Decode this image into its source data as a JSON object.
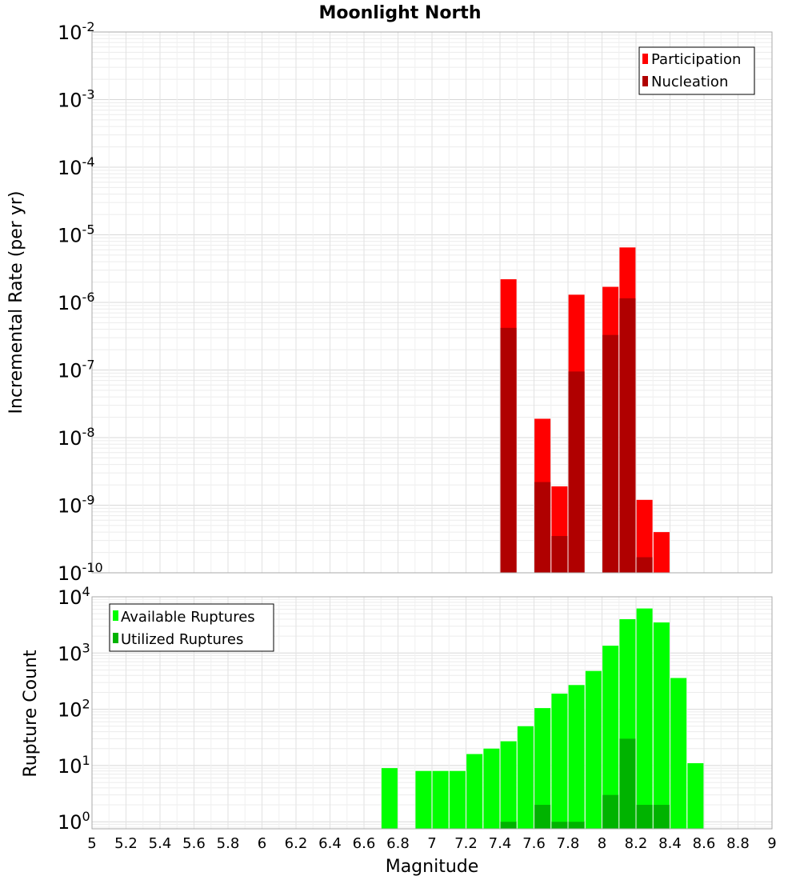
{
  "chart_data": [
    {
      "type": "bar",
      "title": "Moonlight North",
      "ylabel": "Incremental Rate (per yr)",
      "xlabel": "",
      "xlim": [
        5,
        9
      ],
      "ylim": [
        1e-10,
        0.01
      ],
      "y_scale": "log",
      "grid": true,
      "legend_position": "top-right",
      "y_ticks": [
        {
          "base": "10",
          "exp": "-2"
        },
        {
          "base": "10",
          "exp": "-3"
        },
        {
          "base": "10",
          "exp": "-4"
        },
        {
          "base": "10",
          "exp": "-5"
        },
        {
          "base": "10",
          "exp": "-6"
        },
        {
          "base": "10",
          "exp": "-7"
        },
        {
          "base": "10",
          "exp": "-8"
        },
        {
          "base": "10",
          "exp": "-9"
        },
        {
          "base": "10",
          "exp": "-10"
        }
      ],
      "series": [
        {
          "name": "Participation",
          "color": "#ff0000",
          "x": [
            7.45,
            7.65,
            7.75,
            7.85,
            8.05,
            8.15,
            8.25,
            8.35
          ],
          "values": [
            2.2e-06,
            1.9e-08,
            1.9e-09,
            1.3e-06,
            1.7e-06,
            6.5e-06,
            1.2e-09,
            4e-10
          ]
        },
        {
          "name": "Nucleation",
          "color": "#b00000",
          "x": [
            7.45,
            7.65,
            7.75,
            7.85,
            8.05,
            8.15,
            8.25
          ],
          "values": [
            4.2e-07,
            2.2e-09,
            3.5e-10,
            9.5e-08,
            3.3e-07,
            1.15e-06,
            1.7e-10
          ]
        }
      ]
    },
    {
      "type": "bar",
      "title": "",
      "ylabel": "Rupture Count",
      "xlabel": "Magnitude",
      "xlim": [
        5,
        9
      ],
      "ylim": [
        0.75,
        10000
      ],
      "y_scale": "log",
      "grid": true,
      "legend_position": "top-left",
      "x_ticks": [
        "5",
        "5.2",
        "5.4",
        "5.6",
        "5.8",
        "6",
        "6.2",
        "6.4",
        "6.6",
        "6.8",
        "7",
        "7.2",
        "7.4",
        "7.6",
        "7.8",
        "8",
        "8.2",
        "8.4",
        "8.6",
        "8.8",
        "9"
      ],
      "y_ticks": [
        {
          "base": "10",
          "exp": "4"
        },
        {
          "base": "10",
          "exp": "3"
        },
        {
          "base": "10",
          "exp": "2"
        },
        {
          "base": "10",
          "exp": "1"
        },
        {
          "base": "10",
          "exp": "0"
        }
      ],
      "series": [
        {
          "name": "Available Ruptures",
          "color": "#00ff00",
          "x": [
            6.75,
            6.95,
            7.05,
            7.15,
            7.25,
            7.35,
            7.45,
            7.55,
            7.65,
            7.75,
            7.85,
            7.95,
            8.05,
            8.15,
            8.25,
            8.35,
            8.45,
            8.55
          ],
          "values": [
            9,
            8,
            8,
            8,
            16,
            20,
            27,
            50,
            105,
            190,
            270,
            480,
            1350,
            4000,
            6200,
            3500,
            360,
            11
          ]
        },
        {
          "name": "Utilized Ruptures",
          "color": "#00b300",
          "x": [
            7.45,
            7.65,
            7.75,
            7.85,
            8.05,
            8.15,
            8.25,
            8.35
          ],
          "values": [
            1,
            2,
            1,
            1,
            3,
            30,
            2,
            2
          ]
        }
      ]
    }
  ]
}
